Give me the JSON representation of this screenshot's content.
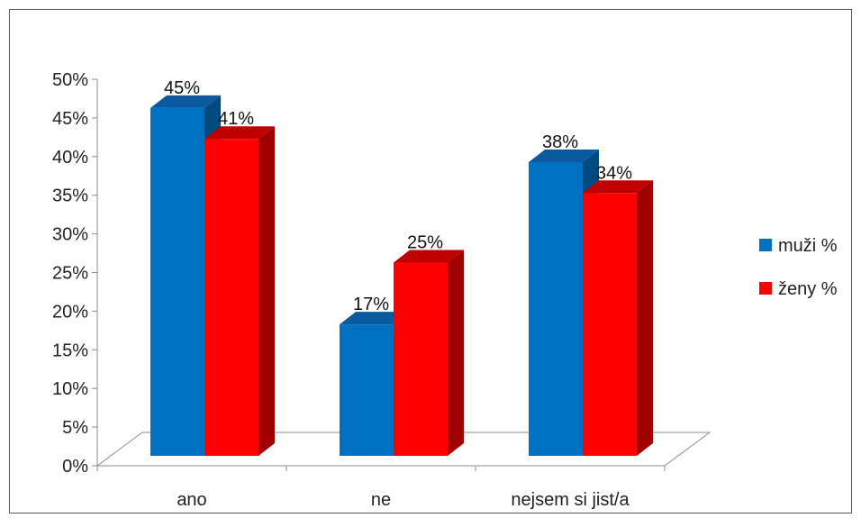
{
  "chart_data": {
    "type": "bar",
    "title": "",
    "xlabel": "",
    "ylabel": "",
    "categories": [
      "ano",
      "ne",
      "nejsem si jist/a"
    ],
    "series": [
      {
        "name": "muži %",
        "values": [
          45,
          17,
          38
        ],
        "labels": [
          "45%",
          "17%",
          "38%"
        ],
        "color": "#0070c0",
        "side_color": "#004a80",
        "top_color": "#0b5aa0"
      },
      {
        "name": "ženy %",
        "values": [
          41,
          25,
          34
        ],
        "labels": [
          "41%",
          "25%",
          "34%"
        ],
        "color": "#ff0000",
        "side_color": "#a00000",
        "top_color": "#c00000"
      }
    ],
    "ylim": [
      0,
      50
    ],
    "y_ticks": [
      0,
      5,
      10,
      15,
      20,
      25,
      30,
      35,
      40,
      45,
      50
    ],
    "y_tick_labels": [
      "0%",
      "5%",
      "10%",
      "15%",
      "20%",
      "25%",
      "30%",
      "35%",
      "40%",
      "45%",
      "50%"
    ],
    "grid": false,
    "legend_position": "right",
    "chart_style": "3d-clustered-column"
  }
}
